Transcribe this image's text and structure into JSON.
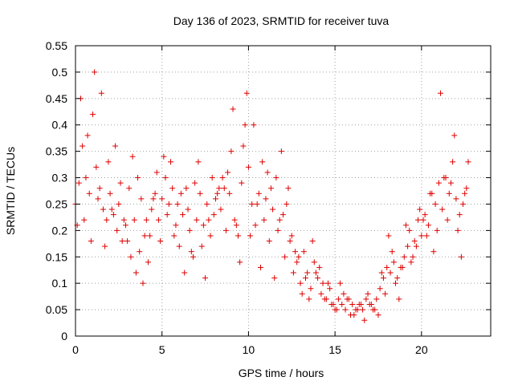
{
  "chart_data": {
    "type": "scatter",
    "title": "Day 136 of 2023, SRMTID for receiver tuva",
    "xlabel": "GPS time / hours",
    "ylabel": "SRMTID / TECUs",
    "xlim": [
      0,
      24
    ],
    "ylim": [
      0,
      0.55
    ],
    "xticks": [
      "0",
      "5",
      "10",
      "15",
      "20"
    ],
    "yticks": [
      "0",
      "0.05",
      "0.1",
      "0.15",
      "0.2",
      "0.25",
      "0.3",
      "0.35",
      "0.4",
      "0.45",
      "0.5",
      "0.55"
    ],
    "grid": true,
    "marker": "+",
    "color": "#e00000",
    "series": [
      {
        "x": [
          0.0,
          0.2,
          0.4,
          0.6,
          0.8,
          1.0,
          1.2,
          1.4,
          1.6,
          1.8,
          2.0,
          2.2,
          2.4,
          2.6,
          2.8,
          3.0,
          3.2,
          3.4,
          3.6,
          3.8,
          4.0,
          4.2,
          4.4,
          4.6,
          4.8,
          5.0,
          5.2,
          5.4,
          5.6,
          5.8,
          6.0,
          6.2,
          6.4,
          6.6,
          6.8,
          7.0,
          7.2,
          7.4,
          7.6,
          7.8,
          8.0,
          8.2,
          8.4,
          8.6,
          8.8,
          9.0,
          9.2,
          9.4,
          9.6,
          9.8,
          10.0,
          10.2,
          10.4,
          10.6,
          10.8,
          11.0,
          11.2,
          11.4,
          11.6,
          11.8,
          12.0,
          12.2,
          12.4,
          12.6,
          12.8,
          13.0,
          13.2,
          13.4,
          13.6,
          13.8,
          14.0,
          14.2,
          14.4,
          14.6,
          14.8,
          15.0,
          15.2,
          15.4,
          15.6,
          15.8,
          16.0,
          16.2,
          16.4,
          16.6,
          16.8,
          17.0,
          17.2,
          17.4,
          17.6,
          17.8,
          18.0,
          18.2,
          18.4,
          18.6,
          18.8,
          19.0,
          19.2,
          19.4,
          19.6,
          19.8,
          20.0,
          20.2,
          20.4,
          20.6,
          20.8,
          21.0,
          21.2,
          21.4,
          21.6,
          21.8,
          22.0,
          22.2,
          22.4,
          22.6
        ],
        "y": [
          0.25,
          0.29,
          0.36,
          0.3,
          0.27,
          0.42,
          0.32,
          0.28,
          0.24,
          0.22,
          0.27,
          0.23,
          0.2,
          0.29,
          0.22,
          0.18,
          0.15,
          0.22,
          0.3,
          0.26,
          0.19,
          0.14,
          0.24,
          0.27,
          0.22,
          0.26,
          0.3,
          0.25,
          0.28,
          0.21,
          0.17,
          0.23,
          0.28,
          0.2,
          0.15,
          0.22,
          0.27,
          0.21,
          0.25,
          0.19,
          0.23,
          0.27,
          0.24,
          0.28,
          0.31,
          0.35,
          0.22,
          0.19,
          0.29,
          0.4,
          0.32,
          0.25,
          0.21,
          0.27,
          0.33,
          0.26,
          0.18,
          0.24,
          0.3,
          0.22,
          0.23,
          0.25,
          0.18,
          0.12,
          0.14,
          0.1,
          0.16,
          0.12,
          0.09,
          0.14,
          0.11,
          0.08,
          0.07,
          0.1,
          0.06,
          0.05,
          0.07,
          0.06,
          0.05,
          0.07,
          0.06,
          0.05,
          0.06,
          0.05,
          0.07,
          0.06,
          0.05,
          0.07,
          0.09,
          0.11,
          0.13,
          0.12,
          0.14,
          0.11,
          0.13,
          0.15,
          0.17,
          0.14,
          0.18,
          0.22,
          0.19,
          0.23,
          0.21,
          0.27,
          0.25,
          0.29,
          0.24,
          0.3,
          0.27,
          0.33,
          0.26,
          0.23,
          0.25,
          0.28
        ]
      },
      {
        "x": [
          0.3,
          0.7,
          1.1,
          1.5,
          1.9,
          2.3,
          2.7,
          3.1,
          3.5,
          3.9,
          4.3,
          4.7,
          5.1,
          5.5,
          5.9,
          6.3,
          6.7,
          7.1,
          7.5,
          7.9,
          8.3,
          8.7,
          9.1,
          9.5,
          9.9,
          10.3,
          10.7,
          11.1,
          11.5,
          11.9,
          12.3,
          12.7,
          13.1,
          13.5,
          13.9,
          14.3,
          14.7,
          15.1,
          15.5,
          15.9,
          16.3,
          16.7,
          17.1,
          17.5,
          17.9,
          18.3,
          18.7,
          19.1,
          19.5,
          19.9,
          20.3,
          20.7,
          21.1,
          21.5,
          21.9,
          22.3,
          22.7
        ],
        "y": [
          0.45,
          0.38,
          0.5,
          0.46,
          0.33,
          0.36,
          0.18,
          0.28,
          0.12,
          0.1,
          0.19,
          0.31,
          0.34,
          0.33,
          0.25,
          0.12,
          0.16,
          0.33,
          0.11,
          0.3,
          0.28,
          0.2,
          0.43,
          0.14,
          0.46,
          0.4,
          0.13,
          0.31,
          0.11,
          0.35,
          0.28,
          0.16,
          0.08,
          0.07,
          0.12,
          0.1,
          0.09,
          0.05,
          0.08,
          0.04,
          0.05,
          0.03,
          0.06,
          0.04,
          0.08,
          0.16,
          0.07,
          0.21,
          0.15,
          0.24,
          0.19,
          0.16,
          0.46,
          0.22,
          0.38,
          0.15,
          0.33
        ]
      },
      {
        "x": [
          0.1,
          0.5,
          0.9,
          1.3,
          1.7,
          2.1,
          2.5,
          2.9,
          3.3,
          3.7,
          4.1,
          4.5,
          4.9,
          5.3,
          5.7,
          6.1,
          6.5,
          6.9,
          7.3,
          7.7,
          8.1,
          8.5,
          8.9,
          9.3,
          9.7,
          10.1,
          10.5,
          10.9,
          11.3,
          11.7,
          12.1,
          12.5,
          12.9,
          13.3,
          13.7,
          14.1,
          14.5,
          14.9,
          15.3,
          15.7,
          16.1,
          16.5,
          16.9,
          17.3,
          17.7,
          18.1,
          18.5,
          18.9,
          19.3,
          19.7,
          20.1,
          20.5,
          20.9,
          21.3,
          21.7,
          22.1,
          22.5
        ],
        "y": [
          0.21,
          0.22,
          0.18,
          0.26,
          0.17,
          0.24,
          0.25,
          0.21,
          0.34,
          0.16,
          0.22,
          0.26,
          0.18,
          0.23,
          0.19,
          0.27,
          0.24,
          0.29,
          0.17,
          0.22,
          0.26,
          0.3,
          0.27,
          0.21,
          0.36,
          0.19,
          0.25,
          0.22,
          0.28,
          0.2,
          0.15,
          0.19,
          0.15,
          0.11,
          0.18,
          0.13,
          0.07,
          0.06,
          0.1,
          0.07,
          0.04,
          0.06,
          0.08,
          0.05,
          0.12,
          0.19,
          0.1,
          0.13,
          0.2,
          0.17,
          0.22,
          0.27,
          0.2,
          0.3,
          0.29,
          0.2,
          0.27
        ]
      }
    ]
  }
}
